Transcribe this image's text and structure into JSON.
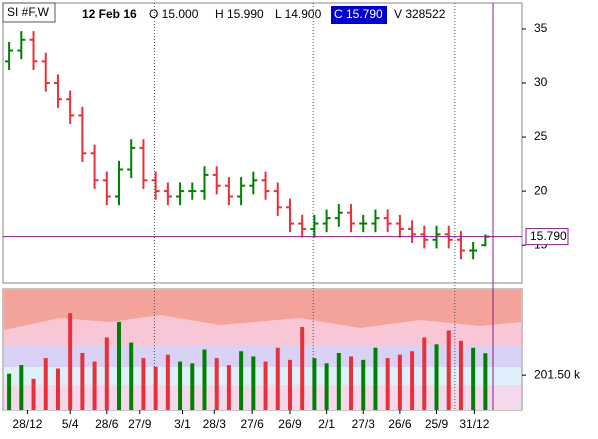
{
  "header": {
    "symbol": "SI #F,W",
    "date": "12 Feb 16",
    "open": "O 15.000",
    "high": "H 15.990",
    "low": "L 14.900",
    "close": "C 15.790",
    "volume": "V 328522"
  },
  "chart_data": {
    "type": "ohlc",
    "open": [
      32.0,
      33.0,
      34.0,
      32.0,
      30.0,
      28.5,
      27.0,
      23.5,
      21.0,
      19.5,
      22.0,
      24.0,
      21.0,
      20.0,
      19.5,
      20.0,
      20.0,
      21.5,
      20.5,
      19.5,
      20.5,
      21.0,
      20.0,
      18.5,
      17.0,
      16.5,
      17.0,
      17.5,
      18.0,
      17.0,
      17.0,
      17.5,
      17.0,
      16.5,
      16.0,
      15.5,
      16.0,
      15.5,
      14.5,
      15.0
    ],
    "high": [
      33.8,
      34.8,
      34.8,
      32.8,
      30.8,
      29.3,
      27.8,
      24.3,
      21.8,
      22.8,
      24.8,
      24.8,
      21.8,
      20.8,
      20.8,
      20.8,
      22.3,
      22.3,
      21.3,
      21.3,
      21.8,
      21.8,
      20.8,
      19.3,
      17.8,
      17.8,
      18.3,
      18.8,
      18.8,
      17.8,
      18.3,
      18.3,
      17.8,
      17.3,
      16.8,
      16.8,
      16.8,
      16.3,
      15.3,
      15.99
    ],
    "low": [
      31.2,
      32.2,
      31.2,
      29.2,
      27.7,
      26.2,
      22.7,
      20.2,
      18.7,
      18.7,
      21.2,
      20.2,
      19.2,
      18.7,
      18.7,
      19.2,
      19.2,
      19.7,
      18.7,
      18.7,
      19.7,
      19.2,
      17.7,
      16.2,
      15.7,
      15.7,
      16.2,
      16.7,
      16.2,
      16.2,
      16.2,
      16.2,
      15.7,
      15.2,
      14.7,
      14.7,
      14.7,
      13.7,
      13.7,
      14.9
    ],
    "close": [
      33.0,
      34.0,
      32.0,
      30.0,
      28.5,
      27.0,
      23.5,
      21.0,
      19.5,
      22.0,
      24.0,
      21.0,
      20.0,
      19.5,
      20.0,
      20.0,
      21.5,
      20.5,
      19.5,
      20.5,
      21.0,
      20.0,
      18.5,
      17.0,
      16.5,
      17.0,
      17.5,
      18.0,
      17.0,
      17.0,
      17.5,
      17.0,
      16.5,
      16.0,
      15.5,
      16.0,
      15.5,
      14.5,
      14.5,
      15.79
    ],
    "volume": [
      210,
      260,
      180,
      300,
      240,
      560,
      330,
      280,
      420,
      510,
      390,
      300,
      250,
      320,
      280,
      270,
      350,
      300,
      260,
      340,
      310,
      280,
      360,
      290,
      480,
      300,
      270,
      330,
      310,
      290,
      360,
      300,
      320,
      340,
      420,
      380,
      460,
      400,
      360,
      328.522
    ],
    "up_color": "#008000",
    "down_color": "#e8303a",
    "ylim": [
      11.5,
      37.4
    ],
    "yticks": [
      15,
      20,
      25,
      30,
      35
    ],
    "vlim": [
      0,
      700
    ],
    "vticks": [
      {
        "value": 201.5,
        "label": "201.50 k"
      }
    ],
    "xlim": [
      -0.5,
      42
    ],
    "xticks": [
      {
        "value": 1.5,
        "label": "28/12"
      },
      {
        "value": 5,
        "label": "5/4"
      },
      {
        "value": 8,
        "label": "28/6"
      },
      {
        "value": 10.7,
        "label": "27/9"
      },
      {
        "value": 14.2,
        "label": "3/1"
      },
      {
        "value": 16.8,
        "label": "28/3"
      },
      {
        "value": 19.9,
        "label": "27/6"
      },
      {
        "value": 23,
        "label": "26/9"
      },
      {
        "value": 26,
        "label": "2/1"
      },
      {
        "value": 29,
        "label": "27/3"
      },
      {
        "value": 32,
        "label": "26/6"
      },
      {
        "value": 35,
        "label": "25/9"
      },
      {
        "value": 38.1,
        "label": "31/12"
      }
    ],
    "year_lines": [
      11.9,
      24.9,
      36.5
    ],
    "last_price": {
      "value": 15.79,
      "label": "15.790"
    }
  }
}
